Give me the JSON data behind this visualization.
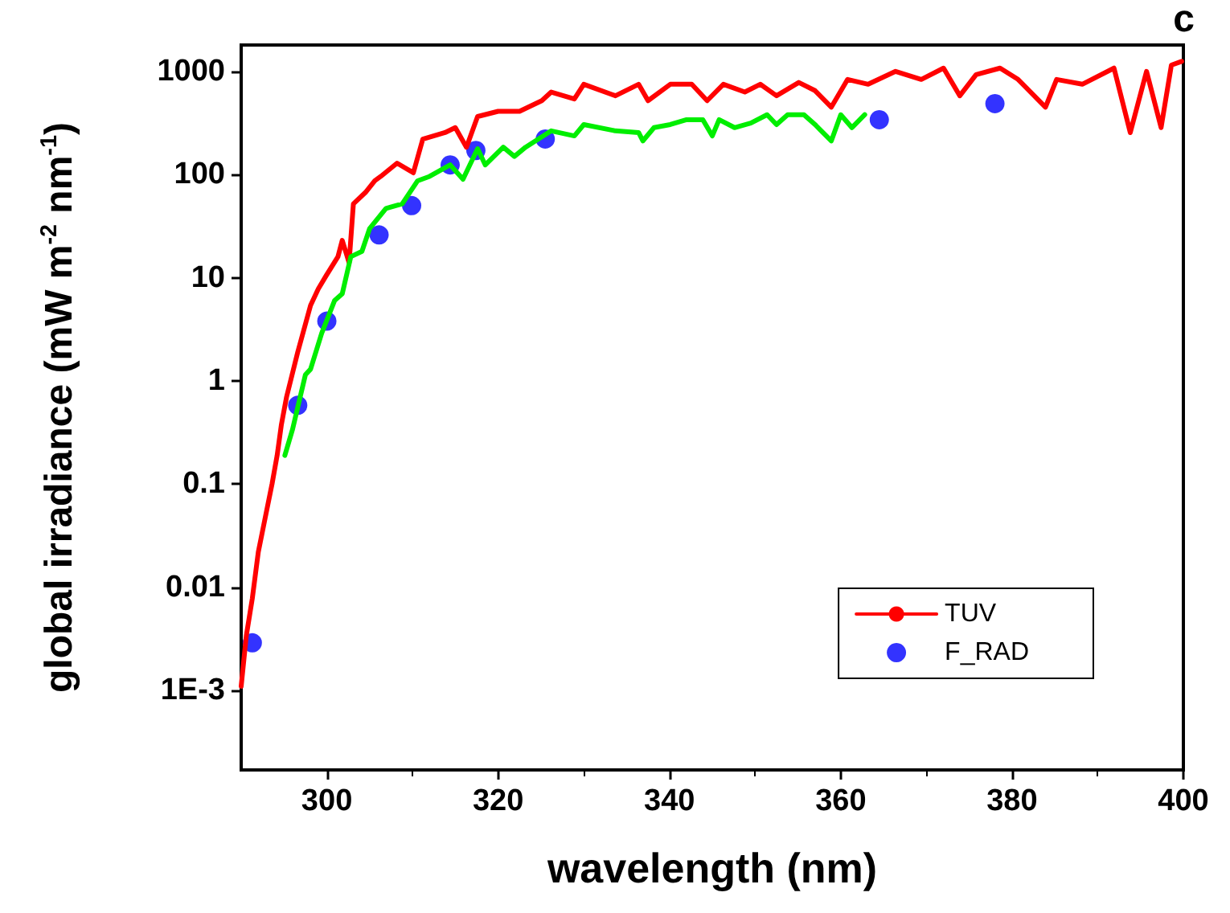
{
  "chart_data": {
    "type": "line",
    "xlabel": "wavelength (nm)",
    "ylabel": "global irradiance (mW m$^{-2}$ nm$^{-1}$)",
    "annotations": [
      "c"
    ],
    "log": "y",
    "xlim": [
      290,
      400
    ],
    "xticks": [
      300,
      320,
      340,
      360,
      380,
      400
    ],
    "ylim": [
      0.00017,
      1800
    ],
    "yticks": [
      {
        "value": 0.001,
        "label": "1E-3"
      },
      0.01,
      0.1,
      1,
      10,
      100,
      1000
    ],
    "grid": false,
    "legend": "bottom right",
    "line_style": "solid",
    "series": [
      {
        "name": "TUV",
        "color": "#ff0000",
        "marker": "none",
        "x": [
          290.0,
          290.6,
          291.3,
          292.0,
          292.8,
          293.6,
          294.2,
          294.7,
          295.3,
          296.6,
          298.1,
          299.0,
          299.9,
          301.3,
          301.8,
          302.6,
          303.1,
          304.5,
          305.6,
          306.3,
          308.2,
          310.1,
          311.2,
          313.8,
          315.0,
          316.3,
          317.6,
          320.0,
          322.5,
          325.1,
          326.2,
          328.9,
          330.0,
          333.7,
          336.4,
          337.5,
          340.1,
          342.6,
          344.4,
          346.3,
          348.8,
          350.6,
          352.5,
          355.1,
          357.0,
          358.9,
          360.8,
          363.2,
          366.4,
          369.4,
          372.0,
          373.9,
          375.8,
          378.6,
          380.7,
          383.9,
          385.2,
          388.2,
          391.9,
          393.8,
          395.7,
          397.4,
          398.6,
          399.8
        ],
        "values": [
          0.0011,
          0.0034,
          0.0078,
          0.022,
          0.047,
          0.1,
          0.19,
          0.38,
          0.7,
          1.9,
          5.4,
          7.8,
          10.4,
          16,
          23,
          14,
          52,
          67,
          87,
          96,
          129,
          104,
          220,
          255,
          285,
          184,
          365,
          410,
          410,
          520,
          630,
          540,
          750,
          580,
          750,
          520,
          750,
          750,
          520,
          750,
          630,
          750,
          580,
          780,
          650,
          450,
          835,
          750,
          1000,
          835,
          1075,
          580,
          930,
          1075,
          835,
          450,
          835,
          750,
          1075,
          255,
          1000,
          285,
          1150,
          1250
        ]
      },
      {
        "color": "#00ee00",
        "marker": "none",
        "x": [
          295.1,
          296.0,
          297.5,
          298.1,
          299.4,
          300.9,
          301.8,
          302.8,
          304.1,
          305.0,
          306.9,
          308.8,
          310.6,
          312.0,
          314.4,
          315.9,
          317.6,
          318.5,
          320.6,
          321.9,
          323.2,
          326.2,
          328.9,
          330.0,
          333.7,
          336.4,
          336.9,
          338.2,
          340.1,
          342.0,
          343.9,
          345.0,
          345.8,
          347.6,
          349.5,
          351.4,
          352.5,
          353.8,
          355.7,
          357.0,
          358.9,
          360.0,
          361.3,
          362.8
        ],
        "values": [
          0.19,
          0.34,
          1.15,
          1.3,
          2.9,
          6,
          7,
          16,
          18,
          30,
          47,
          52,
          87,
          96,
          124,
          90,
          178,
          124,
          184,
          150,
          184,
          265,
          237,
          305,
          265,
          255,
          212,
          285,
          305,
          340,
          340,
          237,
          340,
          285,
          315,
          380,
          305,
          380,
          380,
          305,
          212,
          380,
          285,
          380
        ]
      },
      {
        "name": "F_RAD",
        "type": "scatter",
        "color": "#0000ff",
        "marker": "circle",
        "x": [
          291.3,
          296.6,
          300.0,
          306.1,
          309.9,
          314.4,
          317.4,
          325.5,
          364.5,
          378.0
        ],
        "values": [
          0.0029,
          0.58,
          3.8,
          26,
          50,
          124,
          171,
          221,
          340,
          487
        ]
      }
    ]
  }
}
